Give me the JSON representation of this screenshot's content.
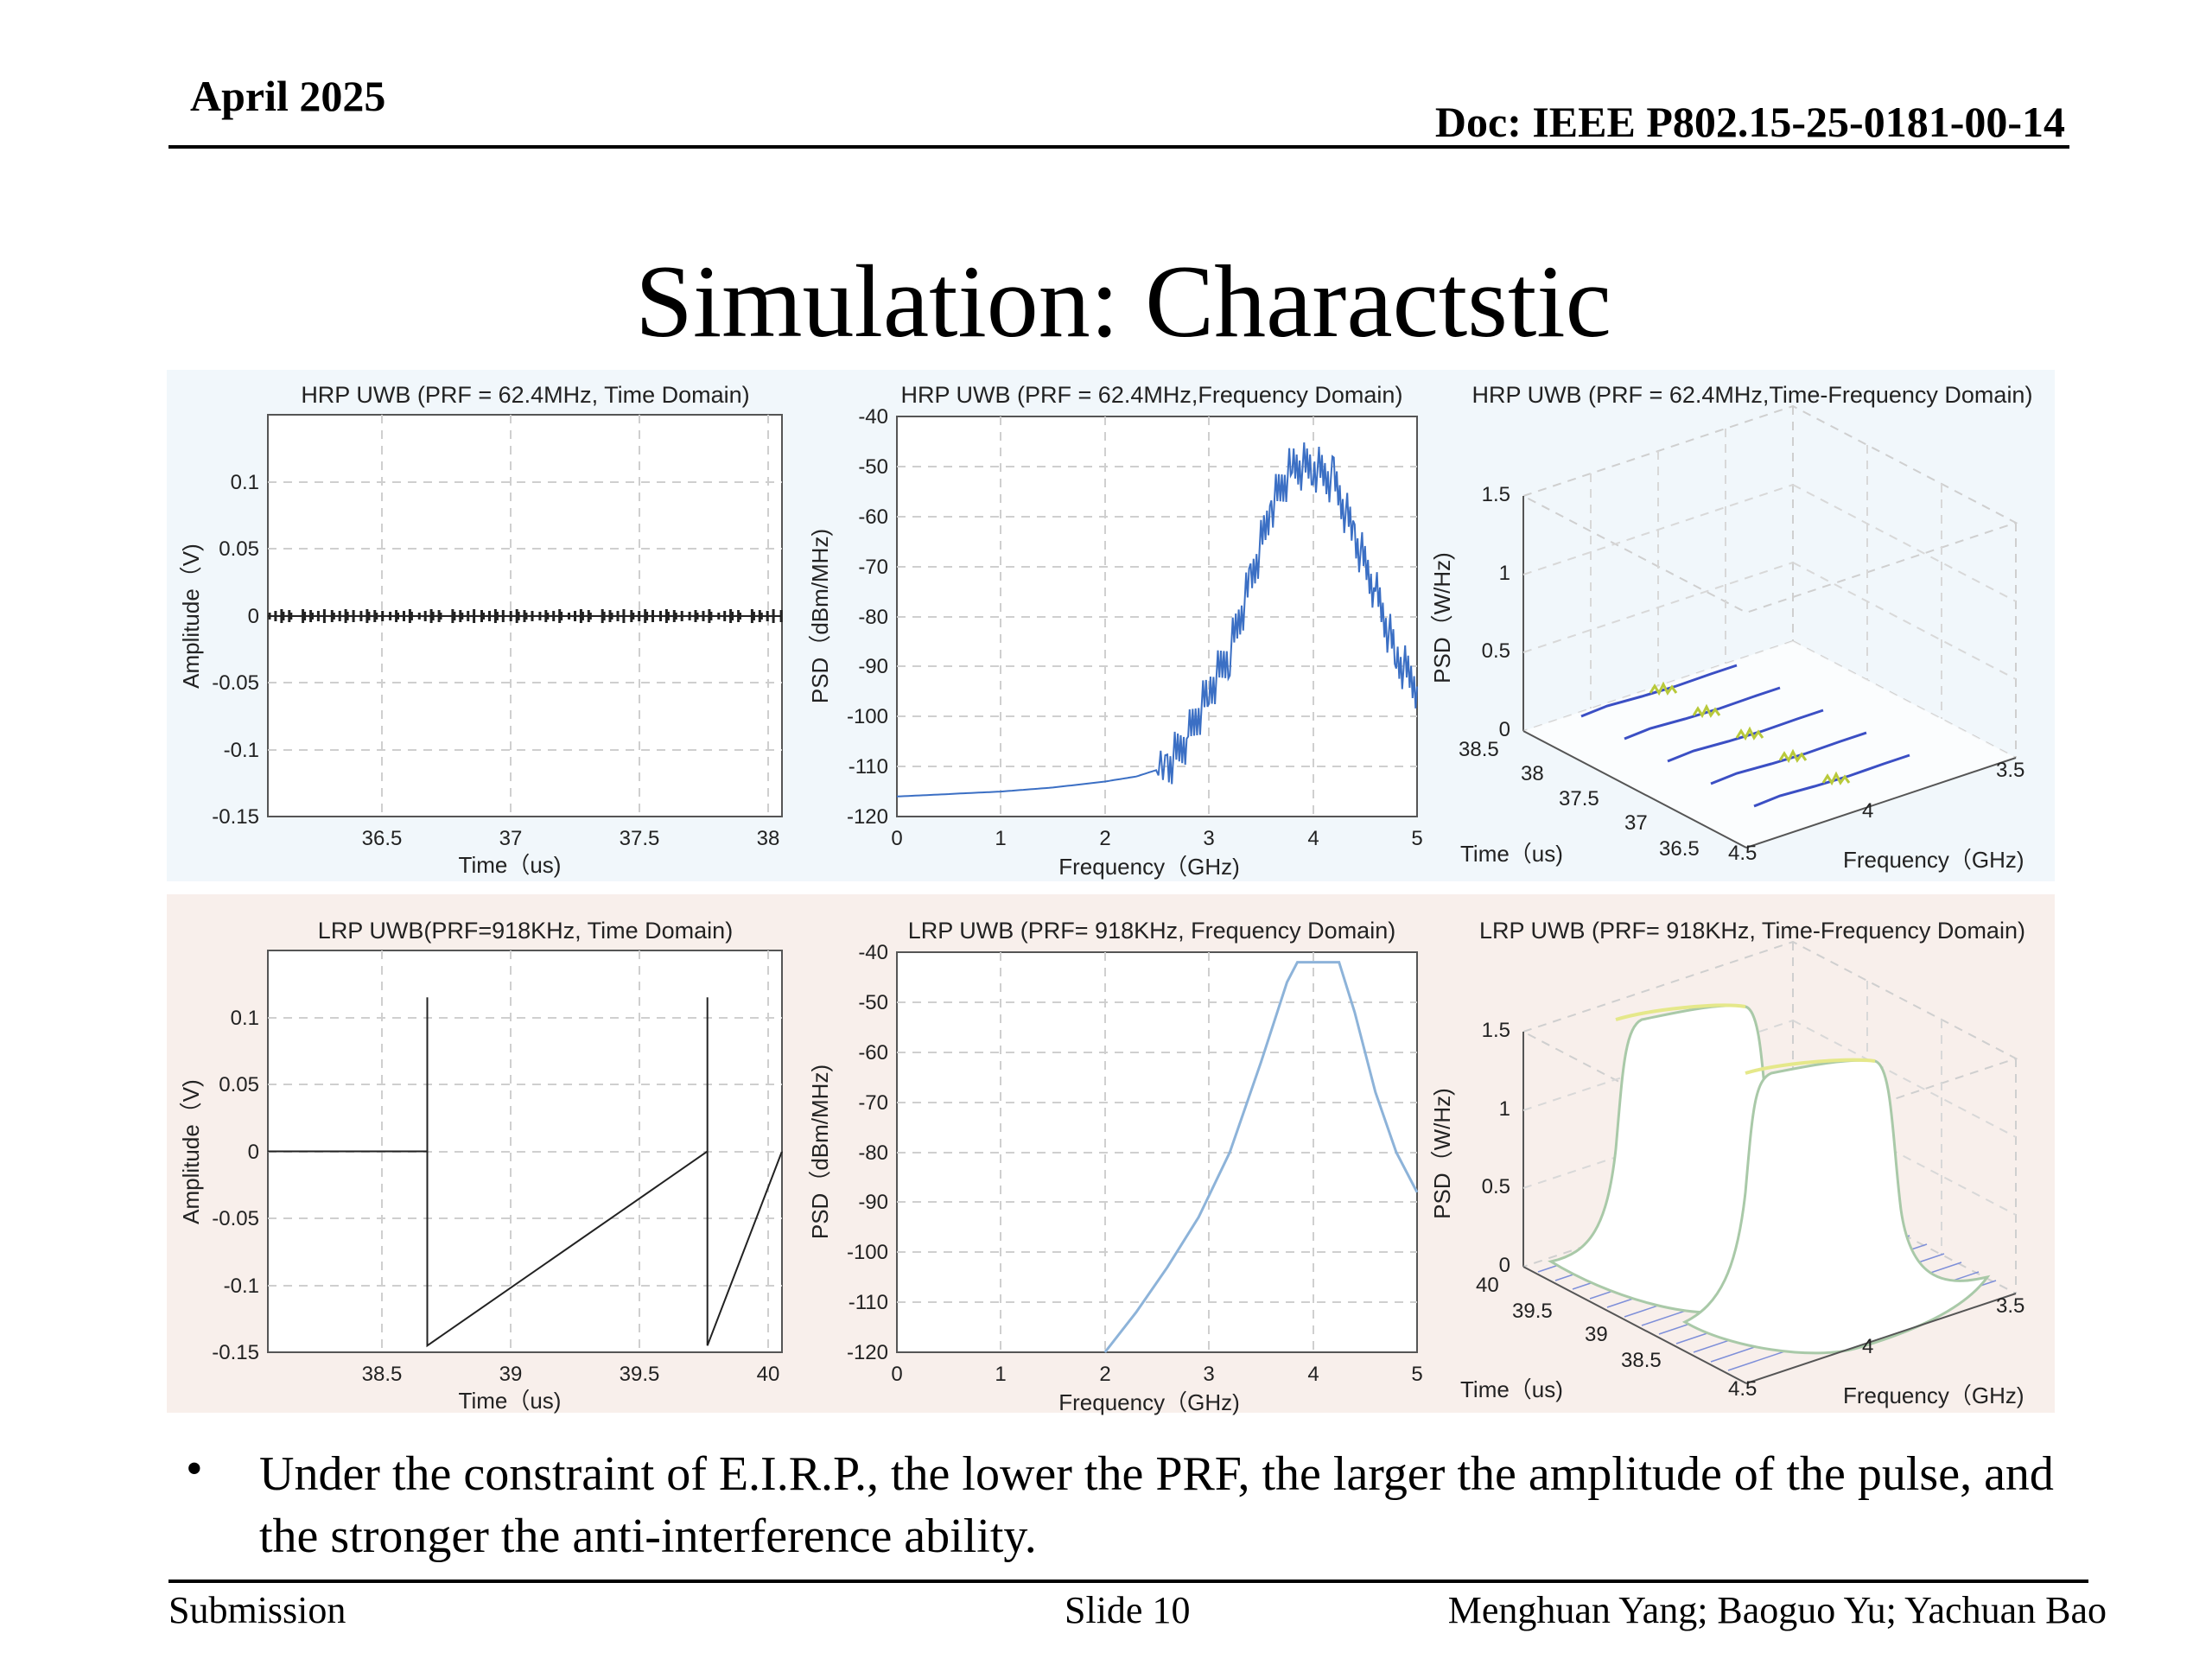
{
  "header": {
    "date": "April 2025",
    "doc_id": "Doc: IEEE P802.15-25-0181-00-14"
  },
  "slide_title": "Simulation: Charactstic",
  "charts": {
    "hrp_time": {
      "title": "HRP UWB (PRF = 62.4MHz, Time Domain)",
      "xlabel": "Time（us)",
      "ylabel": "Amplitude（V)",
      "xticks": [
        "36.5",
        "37",
        "37.5",
        "38"
      ],
      "yticks": [
        "0.1",
        "0.05",
        "0",
        "-0.05",
        "-0.1",
        "-0.15"
      ]
    },
    "hrp_freq": {
      "title": "HRP UWB (PRF = 62.4MHz,Frequency Domain)",
      "xlabel": "Frequency（GHz)",
      "ylabel": "PSD（dBm/MHz)",
      "xticks": [
        "0",
        "1",
        "2",
        "3",
        "4",
        "5"
      ],
      "yticks": [
        "-40",
        "-50",
        "-60",
        "-70",
        "-80",
        "-90",
        "-100",
        "-110",
        "-120"
      ]
    },
    "hrp_tf": {
      "title": "HRP UWB (PRF = 62.4MHz,Time-Frequency Domain)",
      "xlabel": "Time（us)",
      "ylabel": "PSD（W/Hz)",
      "zlabel": "Frequency（GHz)",
      "zticks": [
        "1.5",
        "1",
        "0.5",
        "0"
      ],
      "time_ticks": [
        "38.5",
        "38",
        "37.5",
        "37",
        "36.5"
      ],
      "freq_ticks": [
        "4.5",
        "4",
        "3.5"
      ]
    },
    "lrp_time": {
      "title": "LRP UWB(PRF=918KHz, Time Domain)",
      "xlabel": "Time（us)",
      "ylabel": "Amplitude（V)",
      "xticks": [
        "38.5",
        "39",
        "39.5",
        "40"
      ],
      "yticks": [
        "0.1",
        "0.05",
        "0",
        "-0.05",
        "-0.1",
        "-0.15"
      ]
    },
    "lrp_freq": {
      "title": "LRP UWB (PRF= 918KHz, Frequency Domain)",
      "xlabel": "Frequency（GHz)",
      "ylabel": "PSD（dBm/MHz)",
      "xticks": [
        "0",
        "1",
        "2",
        "3",
        "4",
        "5"
      ],
      "yticks": [
        "-40",
        "-50",
        "-60",
        "-70",
        "-80",
        "-90",
        "-100",
        "-110",
        "-120"
      ]
    },
    "lrp_tf": {
      "title": "LRP UWB (PRF= 918KHz, Time-Frequency Domain)",
      "xlabel": "Time（us)",
      "ylabel": "PSD（W/Hz)",
      "zlabel": "Frequency（GHz)",
      "zticks": [
        "1.5",
        "1",
        "0.5",
        "0"
      ],
      "time_ticks": [
        "40",
        "39.5",
        "39",
        "38.5"
      ],
      "freq_ticks": [
        "4.5",
        "4",
        "3.5"
      ]
    }
  },
  "chart_data": [
    {
      "type": "line",
      "title": "HRP UWB (PRF = 62.4MHz, Time Domain)",
      "xlabel": "Time（us)",
      "ylabel": "Amplitude（V)",
      "xlim": [
        36.05,
        38.05
      ],
      "ylim": [
        -0.15,
        0.15
      ],
      "grid": true,
      "series": [
        {
          "x": [
            36.05,
            38.05
          ],
          "y": [
            0,
            0
          ]
        }
      ]
    },
    {
      "type": "line",
      "title": "HRP UWB (PRF = 62.4MHz,Frequency Domain)",
      "xlabel": "Frequency（GHz)",
      "ylabel": "PSD（dBm/MHz)",
      "xlim": [
        0,
        5
      ],
      "ylim": [
        -120,
        -40
      ],
      "grid": true,
      "series": [
        {
          "x": [
            0,
            0.5,
            1,
            1.5,
            2,
            2.3,
            2.6,
            2.8,
            3,
            3.2,
            3.4,
            3.6,
            3.8,
            4,
            4.2,
            4.4,
            4.6,
            4.8,
            5
          ],
          "y": [
            -116,
            -115.5,
            -115,
            -114.2,
            -113,
            -112,
            -110,
            -104,
            -95,
            -87,
            -73,
            -58,
            -50,
            -50,
            -53,
            -64,
            -75,
            -88,
            -94
          ]
        }
      ]
    },
    {
      "type": "line",
      "title": "LRP UWB(PRF=918KHz, Time Domain)",
      "xlabel": "Time（us)",
      "ylabel": "Amplitude（V)",
      "xlim": [
        38.05,
        40.05
      ],
      "ylim": [
        -0.15,
        0.15
      ],
      "grid": true,
      "series": [
        {
          "x": [
            38.05,
            38.67,
            38.67,
            38.67,
            39.76,
            39.76,
            39.76,
            40.05
          ],
          "y": [
            0,
            0,
            0.115,
            -0.145,
            0,
            0.115,
            -0.145,
            0
          ]
        }
      ]
    },
    {
      "type": "line",
      "title": "LRP UWB (PRF= 918KHz, Frequency Domain)",
      "xlabel": "Frequency（GHz)",
      "ylabel": "PSD（dBm/MHz)",
      "xlim": [
        0,
        5
      ],
      "ylim": [
        -120,
        -40
      ],
      "grid": true,
      "series": [
        {
          "x": [
            2,
            2.3,
            2.6,
            2.9,
            3.2,
            3.5,
            3.75,
            3.85,
            4.25,
            4.4,
            4.6,
            4.8,
            5
          ],
          "y": [
            -120,
            -112,
            -103,
            -93,
            -80,
            -62,
            -46,
            -42,
            -42,
            -52,
            -68,
            -80,
            -88
          ]
        }
      ]
    }
  ],
  "bullet": {
    "symbol": "•",
    "text": "Under the constraint of E.I.R.P., the lower the PRF, the larger the amplitude of the pulse, and the stronger the anti-interference ability."
  },
  "footer": {
    "left": "Submission",
    "center": "Slide 10",
    "right": "Menghuan Yang; Baoguo Yu; Yachuan Bao"
  },
  "colors": {
    "top_panel_bg": "#f1f7fb",
    "bottom_panel_bg": "#f8efeb",
    "hrp_line": "#3b6fc4",
    "lrp_line": "#8db3d9",
    "grid": "#d0d0d0"
  }
}
